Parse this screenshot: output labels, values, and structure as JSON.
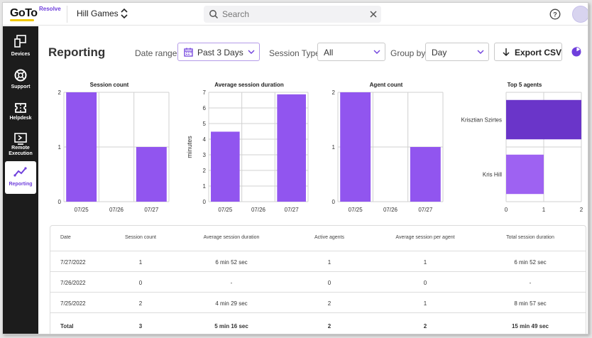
{
  "app": {
    "logo_main": "GoTo",
    "logo_sub": "Resolve",
    "account": "Hill Games",
    "search_placeholder": "Search"
  },
  "sidebar": {
    "items": [
      {
        "label": "Devices",
        "icon": "devices-icon"
      },
      {
        "label": "Support",
        "icon": "lifebuoy-icon"
      },
      {
        "label": "Helpdesk",
        "icon": "ticket-icon"
      },
      {
        "label": "Remote Execution",
        "icon": "terminal-icon"
      },
      {
        "label": "Reporting",
        "icon": "chart-line-icon",
        "active": true
      }
    ]
  },
  "header": {
    "title": "Reporting",
    "date_range_label": "Date range",
    "date_range_value": "Past 3 Days",
    "session_type_label": "Session Type",
    "session_type_value": "All",
    "group_by_label": "Group by",
    "group_by_value": "Day",
    "export_label": "Export CSV"
  },
  "colors": {
    "accent": "#6f3fdc",
    "bar": "#9155ef",
    "bar_dark": "#6a35c9",
    "bar_light": "#9e62f2"
  },
  "chart_data": [
    {
      "type": "bar",
      "title": "Session count",
      "categories": [
        "07/25",
        "07/26",
        "07/27"
      ],
      "values": [
        2,
        0,
        1
      ],
      "ylim": [
        0,
        2
      ],
      "yticks": [
        0,
        1,
        2
      ],
      "ylabel": ""
    },
    {
      "type": "bar",
      "title": "Average session duration",
      "categories": [
        "07/25",
        "07/26",
        "07/27"
      ],
      "values": [
        4.48,
        0,
        6.87
      ],
      "ylim": [
        0,
        7
      ],
      "yticks": [
        0,
        1,
        2,
        3,
        4,
        5,
        6,
        7
      ],
      "ylabel": "minutes"
    },
    {
      "type": "bar",
      "title": "Agent count",
      "categories": [
        "07/25",
        "07/26",
        "07/27"
      ],
      "values": [
        2,
        0,
        1
      ],
      "ylim": [
        0,
        2
      ],
      "yticks": [
        0,
        1,
        2
      ],
      "ylabel": ""
    },
    {
      "type": "bar",
      "orientation": "horizontal",
      "title": "Top 5 agents",
      "categories": [
        "Krisztian Szirtes",
        "Kris Hill"
      ],
      "values": [
        2,
        1
      ],
      "xlim": [
        0,
        2
      ],
      "xticks": [
        0,
        1,
        2
      ]
    }
  ],
  "table": {
    "headers": [
      "Date",
      "Session count",
      "Average session duration",
      "Active agents",
      "Average session per agent",
      "Total session duration"
    ],
    "rows": [
      [
        "7/27/2022",
        "1",
        "6 min 52 sec",
        "1",
        "1",
        "6 min 52 sec"
      ],
      [
        "7/26/2022",
        "0",
        "-",
        "0",
        "0",
        "-"
      ],
      [
        "7/25/2022",
        "2",
        "4 min 29 sec",
        "2",
        "1",
        "8 min 57 sec"
      ]
    ],
    "total": [
      "Total",
      "3",
      "5 min 16 sec",
      "2",
      "2",
      "15 min 49 sec"
    ]
  }
}
